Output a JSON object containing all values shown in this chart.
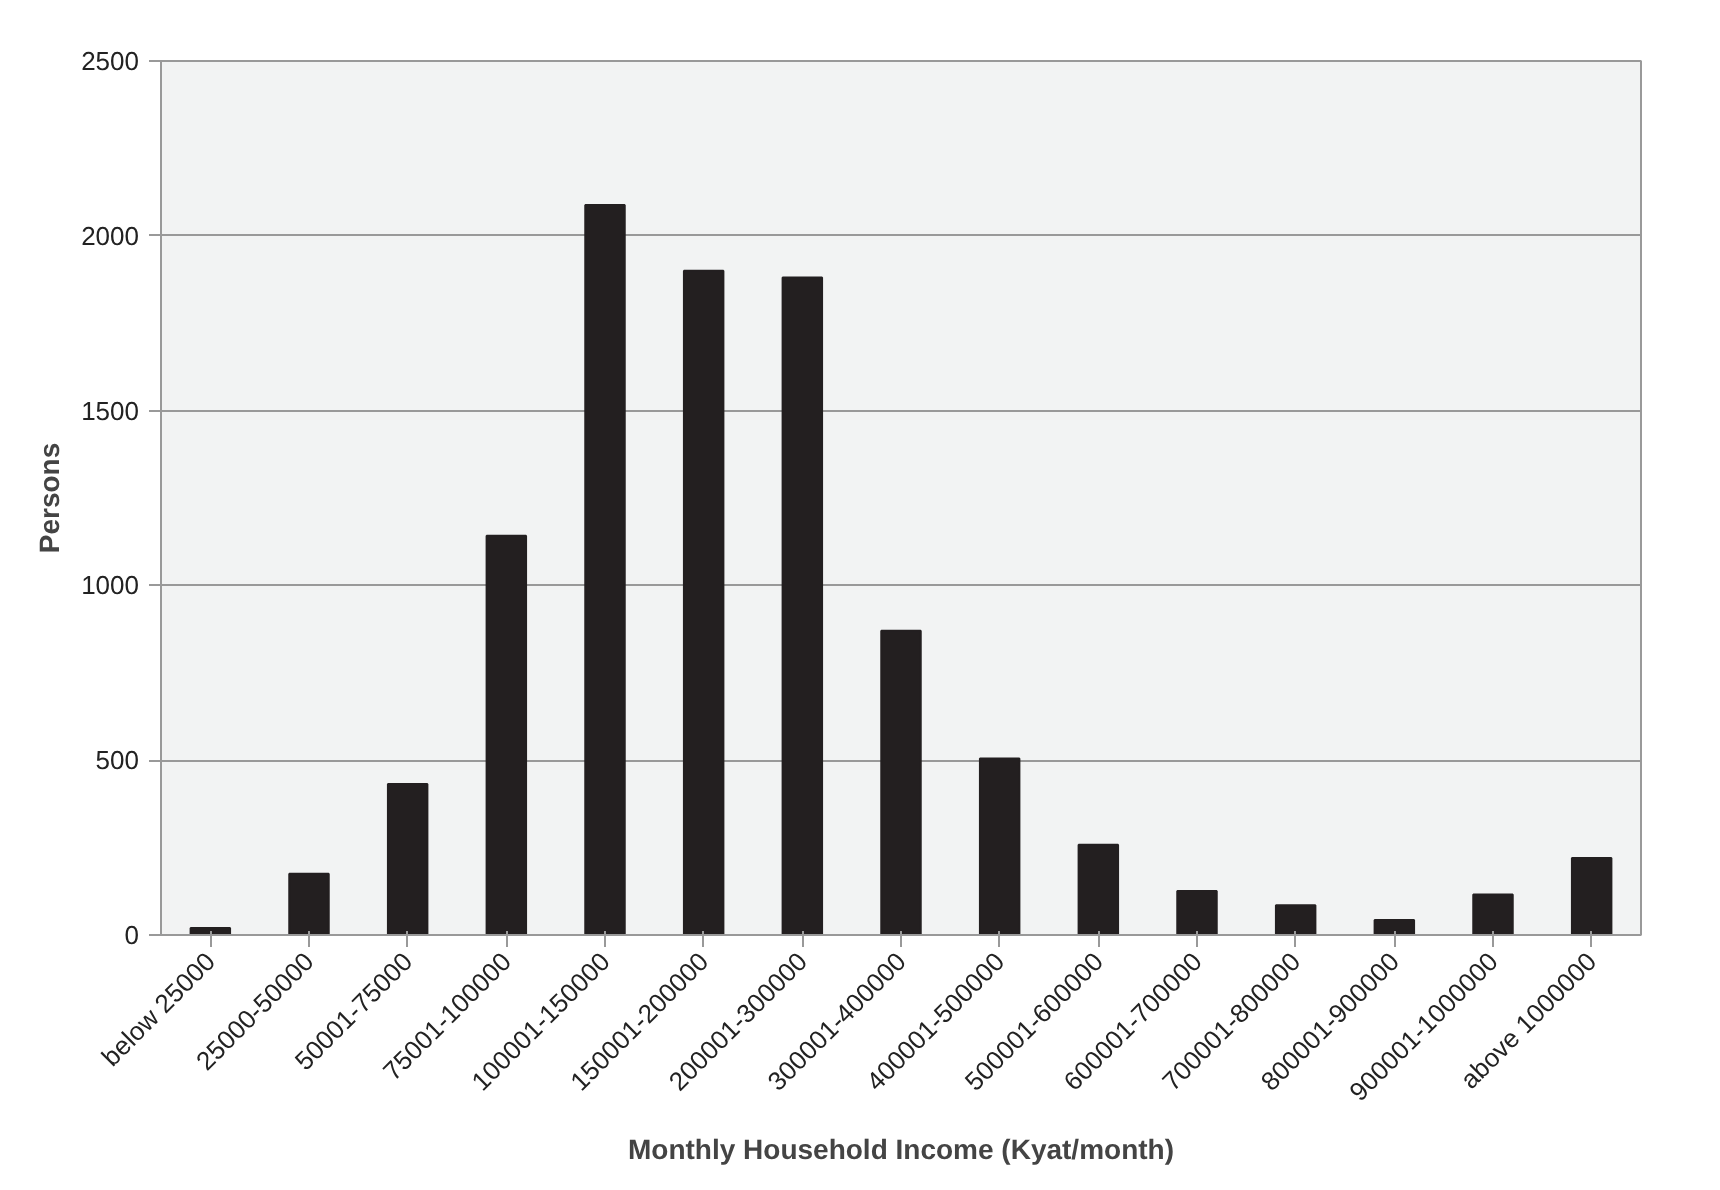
{
  "chart_data": {
    "type": "bar",
    "xlabel": "Monthly Household Income (Kyat/month)",
    "ylabel": "Persons",
    "categories": [
      "below 25000",
      "25000-50000",
      "50001-75000",
      "75001-100000",
      "100001-150000",
      "150001-200000",
      "200001-300000",
      "300001-400000",
      "400001-500000",
      "500001-600000",
      "600001-700000",
      "700001-800000",
      "800001-900000",
      "900001-1000000",
      "above 1000000"
    ],
    "values": [
      20,
      175,
      432,
      1142,
      2088,
      1900,
      1881,
      870,
      505,
      258,
      126,
      85,
      43,
      116,
      220
    ],
    "color": "#231f20",
    "ylim": [
      0,
      2500
    ],
    "yticks": [
      0,
      500,
      1000,
      1500,
      2000,
      2500
    ],
    "grid": "y"
  }
}
